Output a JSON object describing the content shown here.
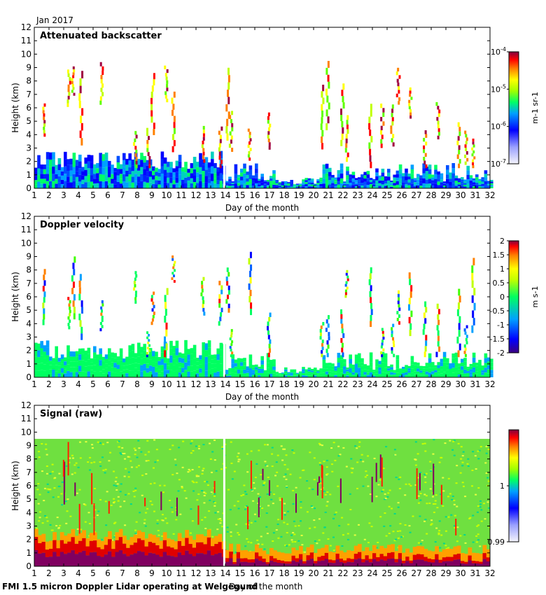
{
  "header": {
    "month_label": "Jan 2017"
  },
  "footer": {
    "caption": "FMI 1.5 micron Doppler Lidar operating at Welgegund",
    "xlabel_inline": "Day of the month"
  },
  "chart_data": [
    {
      "type": "heatmap",
      "title": "Attenuated backscatter",
      "xlabel": "Day of the month",
      "ylabel": "Height (km)",
      "xlim": [
        1,
        32
      ],
      "ylim": [
        0,
        12
      ],
      "x_ticks": [
        "1",
        "2",
        "3",
        "4",
        "5",
        "6",
        "7",
        "8",
        "9",
        "10",
        "11",
        "12",
        "13",
        "14",
        "15",
        "16",
        "17",
        "18",
        "19",
        "20",
        "21",
        "22",
        "23",
        "24",
        "25",
        "26",
        "27",
        "28",
        "29",
        "30",
        "31",
        "32"
      ],
      "y_ticks": [
        "0",
        "1",
        "2",
        "3",
        "4",
        "5",
        "6",
        "7",
        "8",
        "9",
        "10",
        "11",
        "12"
      ],
      "colorbar": {
        "scale": "log",
        "range": [
          1e-07,
          0.0001
        ],
        "unit_label": "m-1 sr-1",
        "ticks": [
          {
            "value": 0.0001,
            "base": "10",
            "exp": "-4"
          },
          {
            "value": 1e-05,
            "base": "10",
            "exp": "-5"
          },
          {
            "value": 1e-06,
            "base": "10",
            "exp": "-6"
          },
          {
            "value": 1e-07,
            "base": "10",
            "exp": "-7"
          }
        ]
      },
      "data_gap_day": 13.9
    },
    {
      "type": "heatmap",
      "title": "Doppler velocity",
      "xlabel": "Day of the month",
      "ylabel": "Height (km)",
      "xlim": [
        1,
        32
      ],
      "ylim": [
        0,
        12
      ],
      "x_ticks": [
        "1",
        "2",
        "3",
        "4",
        "5",
        "6",
        "7",
        "8",
        "9",
        "10",
        "11",
        "12",
        "13",
        "14",
        "15",
        "16",
        "17",
        "18",
        "19",
        "20",
        "21",
        "22",
        "23",
        "24",
        "25",
        "26",
        "27",
        "28",
        "29",
        "30",
        "31",
        "32"
      ],
      "y_ticks": [
        "0",
        "1",
        "2",
        "3",
        "4",
        "5",
        "6",
        "7",
        "8",
        "9",
        "10",
        "11",
        "12"
      ],
      "colorbar": {
        "scale": "linear",
        "range": [
          -2,
          2
        ],
        "unit_label": "m s-1",
        "ticks": [
          "2",
          "1.5",
          "1",
          "0.5",
          "0",
          "-0.5",
          "-1",
          "-1.5",
          "-2"
        ]
      },
      "data_gap_day": 13.9
    },
    {
      "type": "heatmap",
      "title": "Signal (raw)",
      "xlabel": "Day of the month",
      "ylabel": "Height (km)",
      "xlim": [
        1,
        32
      ],
      "ylim": [
        0,
        12
      ],
      "x_ticks": [
        "1",
        "2",
        "3",
        "4",
        "5",
        "6",
        "7",
        "8",
        "9",
        "10",
        "11",
        "12",
        "13",
        "14",
        "15",
        "16",
        "17",
        "18",
        "19",
        "20",
        "21",
        "22",
        "23",
        "24",
        "25",
        "26",
        "27",
        "28",
        "29",
        "30",
        "31",
        "32"
      ],
      "y_ticks": [
        "0",
        "1",
        "2",
        "3",
        "4",
        "5",
        "6",
        "7",
        "8",
        "9",
        "10",
        "11",
        "12"
      ],
      "colorbar": {
        "scale": "linear",
        "range": [
          0.99,
          1.01
        ],
        "ticks": [
          "1",
          "0.99"
        ]
      },
      "signal_top_km": 9.5,
      "data_gap_day": 13.9
    }
  ]
}
